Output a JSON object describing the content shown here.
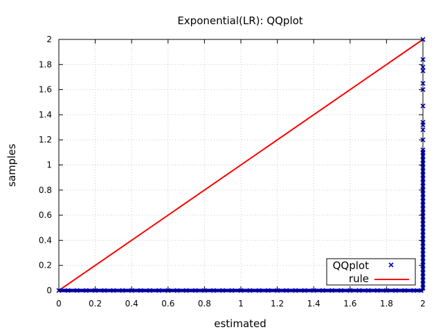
{
  "chart_data": {
    "type": "scatter",
    "title": "Exponential(LR): QQplot",
    "xlabel": "estimated",
    "ylabel": "samples",
    "xlim": [
      0,
      2
    ],
    "ylim": [
      0,
      2
    ],
    "grid": true,
    "legend_position": "bottom-right",
    "x_ticks": [
      "0",
      "0.2",
      "0.4",
      "0.6",
      "0.8",
      "1",
      "1.2",
      "1.4",
      "1.6",
      "1.8",
      "2"
    ],
    "y_ticks": [
      "0",
      "0.2",
      "0.4",
      "0.6",
      "0.8",
      "1",
      "1.2",
      "1.4",
      "1.6",
      "1.8",
      "2"
    ],
    "series": [
      {
        "name": "QQplot",
        "kind": "points",
        "marker": "x",
        "color": "#0000cc",
        "points": [
          [
            0,
            0
          ],
          [
            0.05,
            0
          ],
          [
            0.1,
            0
          ],
          [
            0.15,
            0
          ],
          [
            0.2,
            0
          ],
          [
            0.25,
            0
          ],
          [
            0.3,
            0
          ],
          [
            0.35,
            0
          ],
          [
            0.4,
            0
          ],
          [
            0.45,
            0
          ],
          [
            0.5,
            0
          ],
          [
            0.55,
            0
          ],
          [
            0.6,
            0
          ],
          [
            0.65,
            0
          ],
          [
            0.7,
            0
          ],
          [
            0.75,
            0
          ],
          [
            0.8,
            0
          ],
          [
            0.85,
            0
          ],
          [
            0.9,
            0
          ],
          [
            0.95,
            0
          ],
          [
            1.0,
            0
          ],
          [
            1.05,
            0
          ],
          [
            1.1,
            0
          ],
          [
            1.15,
            0
          ],
          [
            1.2,
            0
          ],
          [
            1.25,
            0
          ],
          [
            1.3,
            0
          ],
          [
            1.35,
            0
          ],
          [
            1.4,
            0
          ],
          [
            1.45,
            0
          ],
          [
            1.5,
            0
          ],
          [
            1.55,
            0
          ],
          [
            1.6,
            0
          ],
          [
            1.65,
            0
          ],
          [
            1.7,
            0
          ],
          [
            1.75,
            0
          ],
          [
            1.8,
            0
          ],
          [
            1.85,
            0
          ],
          [
            1.9,
            0
          ],
          [
            1.95,
            0
          ],
          [
            1.99,
            0
          ],
          [
            2,
            0.02
          ],
          [
            2,
            0.05
          ],
          [
            2,
            0.08
          ],
          [
            2,
            0.11
          ],
          [
            2,
            0.14
          ],
          [
            2,
            0.17
          ],
          [
            2,
            0.2
          ],
          [
            2,
            0.23
          ],
          [
            2,
            0.26
          ],
          [
            2,
            0.29
          ],
          [
            2,
            0.32
          ],
          [
            2,
            0.35
          ],
          [
            2,
            0.38
          ],
          [
            2,
            0.41
          ],
          [
            2,
            0.44
          ],
          [
            2,
            0.47
          ],
          [
            2,
            0.5
          ],
          [
            2,
            0.53
          ],
          [
            2,
            0.56
          ],
          [
            2,
            0.59
          ],
          [
            2,
            0.62
          ],
          [
            2,
            0.65
          ],
          [
            2,
            0.68
          ],
          [
            2,
            0.71
          ],
          [
            2,
            0.74
          ],
          [
            2,
            0.77
          ],
          [
            2,
            0.8
          ],
          [
            2,
            0.83
          ],
          [
            2,
            0.86
          ],
          [
            2,
            0.89
          ],
          [
            2,
            0.92
          ],
          [
            2,
            0.95
          ],
          [
            2,
            0.98
          ],
          [
            2,
            1.01
          ],
          [
            2,
            1.04
          ],
          [
            2,
            1.07
          ],
          [
            2,
            1.1
          ],
          [
            2,
            1.12
          ],
          [
            2,
            1.2
          ],
          [
            2,
            1.28
          ],
          [
            2,
            1.32
          ],
          [
            2,
            1.34
          ],
          [
            2,
            1.47
          ],
          [
            2,
            1.6
          ],
          [
            2,
            1.65
          ],
          [
            2,
            1.75
          ],
          [
            2,
            1.78
          ],
          [
            2,
            1.84
          ],
          [
            2,
            2.0
          ]
        ]
      },
      {
        "name": "rule",
        "kind": "line",
        "color": "#ff0000",
        "points": [
          [
            0,
            0
          ],
          [
            2,
            2
          ]
        ]
      }
    ]
  }
}
